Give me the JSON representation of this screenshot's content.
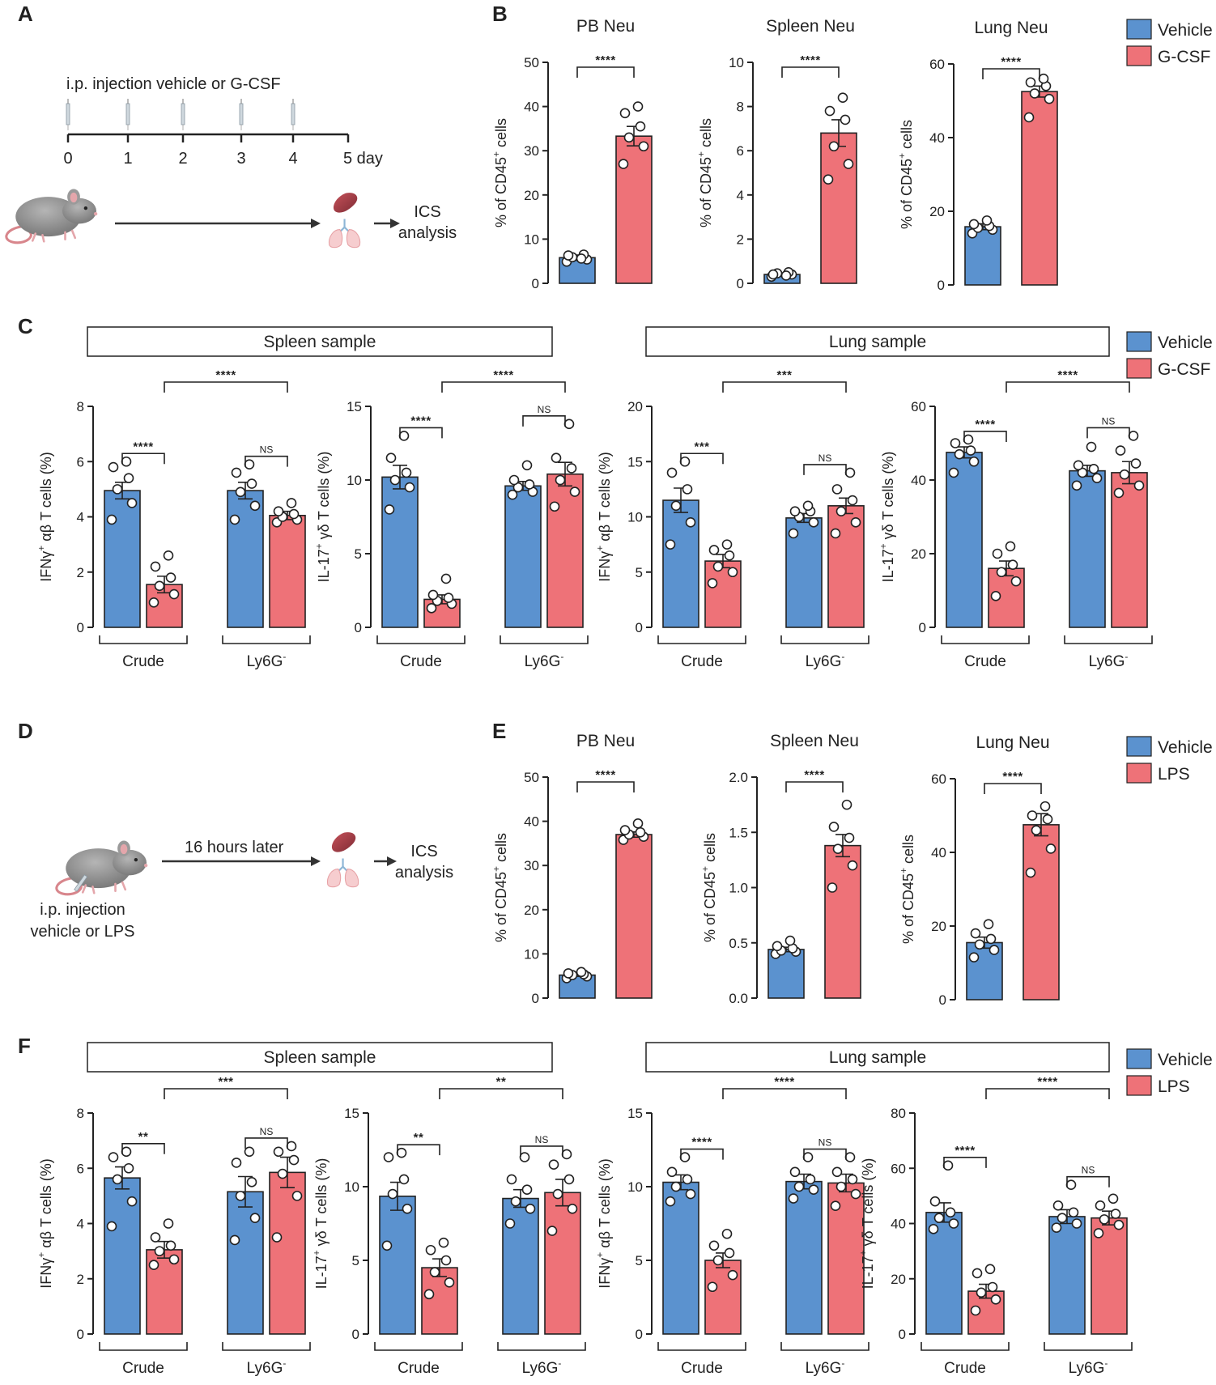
{
  "panels": {
    "a": "A",
    "b": "B",
    "c": "C",
    "d": "D",
    "e": "E",
    "f": "F"
  },
  "titles": {
    "pb": "PB Neu",
    "spleen": "Spleen Neu",
    "lung": "Lung Neu"
  },
  "boxes": {
    "spleen": "Spleen sample",
    "lung": "Lung sample"
  },
  "legend": {
    "vehicle": "Vehicle",
    "gcsf": "G-CSF",
    "lps": "LPS",
    "vehicle_color": "#5b92cf",
    "gcsf_color": "#ee7278",
    "lps_color": "#ee7278"
  },
  "diagram_a": {
    "title": "i.p. injection vehicle or G-CSF",
    "days": [
      "0",
      "1",
      "2",
      "3",
      "4",
      "5 day"
    ],
    "ics1": "ICS",
    "ics2": "analysis"
  },
  "diagram_d": {
    "timer": "16 hours later",
    "inj1": "i.p. injection",
    "inj2": "vehicle or LPS",
    "ics1": "ICS",
    "ics2": "analysis"
  },
  "chart_data": [
    {
      "id": "B1",
      "panel": "B",
      "type": "bar",
      "title": "PB Neu",
      "ylabel": "% of CD45+ cells",
      "ylim": [
        0,
        50
      ],
      "yticks": [
        0,
        10,
        20,
        30,
        40,
        50
      ],
      "categories": [
        "Vehicle",
        "G-CSF"
      ],
      "values": [
        5.8,
        33.3
      ],
      "sem": [
        0.6,
        2.2
      ],
      "points": [
        [
          4.9,
          5.4,
          5.9,
          6.5,
          6.3,
          5.6
        ],
        [
          27.0,
          31.0,
          33.0,
          35.5,
          38.5,
          40.0
        ]
      ],
      "significance": [
        {
          "from": 0,
          "to": 1,
          "text": "****"
        }
      ]
    },
    {
      "id": "B2",
      "panel": "B",
      "type": "bar",
      "title": "Spleen Neu",
      "ylabel": "% of CD45+ cells",
      "ylim": [
        0,
        10
      ],
      "yticks": [
        0,
        2,
        4,
        6,
        8,
        10
      ],
      "categories": [
        "Vehicle",
        "G-CSF"
      ],
      "values": [
        0.4,
        6.8
      ],
      "sem": [
        0.05,
        0.6
      ],
      "points": [
        [
          0.3,
          0.4,
          0.45,
          0.5,
          0.4,
          0.35
        ],
        [
          4.7,
          5.4,
          6.2,
          7.4,
          7.8,
          8.4
        ]
      ],
      "significance": [
        {
          "from": 0,
          "to": 1,
          "text": "****"
        }
      ]
    },
    {
      "id": "B3",
      "panel": "B",
      "type": "bar",
      "title": "Lung Neu",
      "ylabel": "% of CD45+ cells",
      "ylim": [
        0,
        60
      ],
      "yticks": [
        0,
        20,
        40,
        60
      ],
      "categories": [
        "Vehicle",
        "G-CSF"
      ],
      "values": [
        15.8,
        52.5
      ],
      "sem": [
        0.8,
        1.5
      ],
      "points": [
        [
          14.0,
          15.0,
          15.5,
          16.0,
          16.5,
          17.5
        ],
        [
          45.5,
          50.5,
          52.0,
          54.0,
          55.0,
          56.0
        ]
      ],
      "significance": [
        {
          "from": 0,
          "to": 1,
          "text": "****"
        }
      ]
    },
    {
      "id": "C1",
      "panel": "C",
      "type": "bar",
      "ylabel": "IFNγ+ αβ T cells (%)",
      "ylim": [
        0,
        8
      ],
      "yticks": [
        0,
        2,
        4,
        6,
        8
      ],
      "categories": [
        "Crude Vehicle",
        "Crude G-CSF",
        "Ly6G- Vehicle",
        "Ly6G- G-CSF"
      ],
      "groups": [
        "Crude",
        "Ly6G-"
      ],
      "values": [
        4.95,
        1.55,
        4.95,
        4.05
      ],
      "sem": [
        0.3,
        0.3,
        0.3,
        0.15
      ],
      "points": [
        [
          3.9,
          4.5,
          5.0,
          5.4,
          5.8,
          6.0
        ],
        [
          0.9,
          1.2,
          1.5,
          1.8,
          2.2,
          2.6
        ],
        [
          3.9,
          4.4,
          4.9,
          5.2,
          5.6,
          5.9
        ],
        [
          3.8,
          3.9,
          4.0,
          4.1,
          4.2,
          4.5
        ]
      ],
      "significance": [
        {
          "from": 0,
          "to": 1,
          "text": "****"
        },
        {
          "from": 2,
          "to": 3,
          "text": "NS"
        },
        {
          "from": 1,
          "to": 3,
          "text": "****"
        }
      ]
    },
    {
      "id": "C2",
      "panel": "C",
      "type": "bar",
      "ylabel": "IL-17+ γδ T cells (%)",
      "ylim": [
        0,
        15
      ],
      "yticks": [
        0,
        5,
        10,
        15
      ],
      "categories": [
        "Crude Vehicle",
        "Crude G-CSF",
        "Ly6G- Vehicle",
        "Ly6G- G-CSF"
      ],
      "groups": [
        "Crude",
        "Ly6G-"
      ],
      "values": [
        10.2,
        1.9,
        9.6,
        10.4
      ],
      "sem": [
        0.8,
        0.3,
        0.3,
        0.8
      ],
      "points": [
        [
          8.0,
          9.5,
          10.0,
          10.5,
          11.5,
          13.0
        ],
        [
          1.3,
          1.6,
          1.8,
          2.0,
          2.2,
          3.3
        ],
        [
          9.0,
          9.2,
          9.5,
          9.7,
          10.0,
          11.0
        ],
        [
          8.2,
          9.2,
          10.0,
          10.8,
          11.5,
          13.8
        ]
      ],
      "significance": [
        {
          "from": 0,
          "to": 1,
          "text": "****"
        },
        {
          "from": 2,
          "to": 3,
          "text": "NS"
        },
        {
          "from": 1,
          "to": 3,
          "text": "****"
        }
      ]
    },
    {
      "id": "C3",
      "panel": "C",
      "type": "bar",
      "ylabel": "IFNγ+ αβ T cells (%)",
      "ylim": [
        0,
        20
      ],
      "yticks": [
        0,
        5,
        10,
        15,
        20
      ],
      "categories": [
        "Crude Vehicle",
        "Crude G-CSF",
        "Ly6G- Vehicle",
        "Ly6G- G-CSF"
      ],
      "groups": [
        "Crude",
        "Ly6G-"
      ],
      "values": [
        11.5,
        6.0,
        9.9,
        11.0
      ],
      "sem": [
        1.1,
        0.6,
        0.4,
        0.7
      ],
      "points": [
        [
          7.5,
          9.5,
          11.0,
          12.5,
          14.0,
          15.0
        ],
        [
          4.0,
          5.0,
          5.5,
          6.5,
          7.0,
          7.5
        ],
        [
          8.5,
          9.5,
          10.0,
          10.5,
          10.5,
          11.0
        ],
        [
          8.5,
          9.5,
          10.5,
          11.5,
          12.5,
          14.0
        ]
      ],
      "significance": [
        {
          "from": 0,
          "to": 1,
          "text": "***"
        },
        {
          "from": 2,
          "to": 3,
          "text": "NS"
        },
        {
          "from": 1,
          "to": 3,
          "text": "***"
        }
      ]
    },
    {
      "id": "C4",
      "panel": "C",
      "type": "bar",
      "ylabel": "IL-17+ γδ T cells (%)",
      "ylim": [
        0,
        60
      ],
      "yticks": [
        0,
        20,
        40,
        60
      ],
      "categories": [
        "Crude Vehicle",
        "Crude G-CSF",
        "Ly6G- Vehicle",
        "Ly6G- G-CSF"
      ],
      "groups": [
        "Crude",
        "Ly6G-"
      ],
      "values": [
        47.5,
        16.0,
        42.5,
        42.0
      ],
      "sem": [
        1.5,
        2.0,
        1.5,
        3.0
      ],
      "points": [
        [
          42.0,
          45.0,
          47.0,
          48.0,
          50.0,
          51.0
        ],
        [
          8.5,
          12.5,
          15.0,
          17.0,
          20.0,
          22.0
        ],
        [
          38.5,
          40.5,
          42.0,
          43.0,
          44.0,
          49.0
        ],
        [
          36.5,
          38.5,
          41.5,
          44.5,
          48.0,
          52.0
        ]
      ],
      "significance": [
        {
          "from": 0,
          "to": 1,
          "text": "****"
        },
        {
          "from": 2,
          "to": 3,
          "text": "NS"
        },
        {
          "from": 1,
          "to": 3,
          "text": "****"
        }
      ]
    },
    {
      "id": "E1",
      "panel": "E",
      "type": "bar",
      "title": "PB Neu",
      "ylabel": "% of CD45+ cells",
      "ylim": [
        0,
        50
      ],
      "yticks": [
        0,
        10,
        20,
        30,
        40,
        50
      ],
      "categories": [
        "Vehicle",
        "LPS"
      ],
      "values": [
        5.2,
        37.0
      ],
      "sem": [
        0.3,
        0.6
      ],
      "points": [
        [
          4.5,
          4.9,
          5.2,
          5.4,
          5.6,
          5.9
        ],
        [
          35.8,
          36.5,
          37.0,
          37.5,
          38.0,
          39.5
        ]
      ],
      "significance": [
        {
          "from": 0,
          "to": 1,
          "text": "****"
        }
      ]
    },
    {
      "id": "E2",
      "panel": "E",
      "type": "bar",
      "title": "Spleen Neu",
      "ylabel": "% of CD45+ cells",
      "ylim": [
        0,
        2.0
      ],
      "yticks": [
        0.0,
        0.5,
        1.0,
        1.5,
        2.0
      ],
      "tickDecimals": 1,
      "categories": [
        "Vehicle",
        "LPS"
      ],
      "values": [
        0.44,
        1.38
      ],
      "sem": [
        0.02,
        0.1
      ],
      "points": [
        [
          0.4,
          0.42,
          0.43,
          0.45,
          0.47,
          0.52
        ],
        [
          1.0,
          1.2,
          1.35,
          1.45,
          1.55,
          1.75
        ]
      ],
      "significance": [
        {
          "from": 0,
          "to": 1,
          "text": "****"
        }
      ]
    },
    {
      "id": "E3",
      "panel": "E",
      "type": "bar",
      "title": "Lung Neu",
      "ylabel": "% of CD45+ cells",
      "ylim": [
        0,
        60
      ],
      "yticks": [
        0,
        20,
        40,
        60
      ],
      "categories": [
        "Vehicle",
        "LPS"
      ],
      "values": [
        15.5,
        47.5
      ],
      "sem": [
        1.5,
        3.0
      ],
      "points": [
        [
          11.5,
          13.5,
          15.0,
          16.5,
          18.0,
          20.5
        ],
        [
          34.5,
          41.0,
          46.0,
          49.0,
          50.0,
          52.5
        ]
      ],
      "significance": [
        {
          "from": 0,
          "to": 1,
          "text": "****"
        }
      ]
    },
    {
      "id": "F1",
      "panel": "F",
      "type": "bar",
      "ylabel": "IFNγ+ αβ T cells (%)",
      "ylim": [
        0,
        8
      ],
      "yticks": [
        0,
        2,
        4,
        6,
        8
      ],
      "categories": [
        "Crude Vehicle",
        "Crude LPS",
        "Ly6G- Vehicle",
        "Ly6G- LPS"
      ],
      "groups": [
        "Crude",
        "Ly6G-"
      ],
      "values": [
        5.65,
        3.05,
        5.15,
        5.85
      ],
      "sem": [
        0.4,
        0.3,
        0.55,
        0.55
      ],
      "points": [
        [
          3.9,
          4.8,
          5.6,
          6.0,
          6.4,
          6.6
        ],
        [
          2.5,
          2.7,
          3.0,
          3.2,
          3.5,
          4.0
        ],
        [
          3.4,
          4.2,
          5.0,
          5.5,
          6.2,
          6.6
        ],
        [
          3.5,
          5.0,
          5.8,
          6.3,
          6.6,
          6.8
        ]
      ],
      "significance": [
        {
          "from": 0,
          "to": 1,
          "text": "**"
        },
        {
          "from": 2,
          "to": 3,
          "text": "NS"
        },
        {
          "from": 1,
          "to": 3,
          "text": "***"
        }
      ]
    },
    {
      "id": "F2",
      "panel": "F",
      "type": "bar",
      "ylabel": "IL-17+ γδ T cells (%)",
      "ylim": [
        0,
        15
      ],
      "yticks": [
        0,
        5,
        10,
        15
      ],
      "categories": [
        "Crude Vehicle",
        "Crude LPS",
        "Ly6G- Vehicle",
        "Ly6G- LPS"
      ],
      "groups": [
        "Crude",
        "Ly6G-"
      ],
      "values": [
        9.35,
        4.5,
        9.2,
        9.6
      ],
      "sem": [
        0.95,
        0.6,
        0.6,
        0.9
      ],
      "points": [
        [
          6.0,
          8.5,
          9.5,
          10.5,
          12.0,
          12.3
        ],
        [
          2.7,
          3.5,
          4.2,
          5.0,
          5.7,
          6.2
        ],
        [
          7.5,
          8.5,
          9.0,
          9.8,
          10.5,
          12.0
        ],
        [
          7.0,
          8.5,
          9.5,
          10.5,
          11.5,
          12.2
        ]
      ],
      "significance": [
        {
          "from": 0,
          "to": 1,
          "text": "**"
        },
        {
          "from": 2,
          "to": 3,
          "text": "NS"
        },
        {
          "from": 1,
          "to": 3,
          "text": "**"
        }
      ]
    },
    {
      "id": "F3",
      "panel": "F",
      "type": "bar",
      "ylabel": "IFNγ+ αβ T cells (%)",
      "ylim": [
        0,
        15
      ],
      "yticks": [
        0,
        5,
        10,
        15
      ],
      "categories": [
        "Crude Vehicle",
        "Crude LPS",
        "Ly6G- Vehicle",
        "Ly6G- LPS"
      ],
      "groups": [
        "Crude",
        "Ly6G-"
      ],
      "values": [
        10.3,
        5.0,
        10.35,
        10.25
      ],
      "sem": [
        0.5,
        0.5,
        0.5,
        0.6
      ],
      "points": [
        [
          9.0,
          9.5,
          10.0,
          10.5,
          11.0,
          12.0
        ],
        [
          3.2,
          4.0,
          5.0,
          5.5,
          6.0,
          6.8
        ],
        [
          9.2,
          9.8,
          10.0,
          10.5,
          11.0,
          12.0
        ],
        [
          8.7,
          9.5,
          10.0,
          10.5,
          11.0,
          12.0
        ]
      ],
      "significance": [
        {
          "from": 0,
          "to": 1,
          "text": "****"
        },
        {
          "from": 2,
          "to": 3,
          "text": "NS"
        },
        {
          "from": 1,
          "to": 3,
          "text": "****"
        }
      ]
    },
    {
      "id": "F4",
      "panel": "F",
      "type": "bar",
      "ylabel": "IL-17+ γδ T cells (%)",
      "ylim": [
        0,
        80
      ],
      "yticks": [
        0,
        20,
        40,
        60,
        80
      ],
      "categories": [
        "Crude Vehicle",
        "Crude LPS",
        "Ly6G- Vehicle",
        "Ly6G- LPS"
      ],
      "groups": [
        "Crude",
        "Ly6G-"
      ],
      "values": [
        44.0,
        15.5,
        42.5,
        42.0
      ],
      "sem": [
        3.5,
        2.5,
        2.5,
        2.5
      ],
      "points": [
        [
          38.0,
          40.0,
          42.0,
          44.0,
          48.0,
          61.0
        ],
        [
          8.5,
          12.5,
          15.0,
          17.0,
          22.0,
          23.5
        ],
        [
          38.5,
          40.0,
          42.0,
          44.0,
          46.5,
          54.0
        ],
        [
          36.5,
          39.5,
          41.5,
          43.5,
          46.5,
          49.0
        ]
      ],
      "significance": [
        {
          "from": 0,
          "to": 1,
          "text": "****"
        },
        {
          "from": 2,
          "to": 3,
          "text": "NS"
        },
        {
          "from": 1,
          "to": 3,
          "text": "****"
        }
      ]
    }
  ]
}
